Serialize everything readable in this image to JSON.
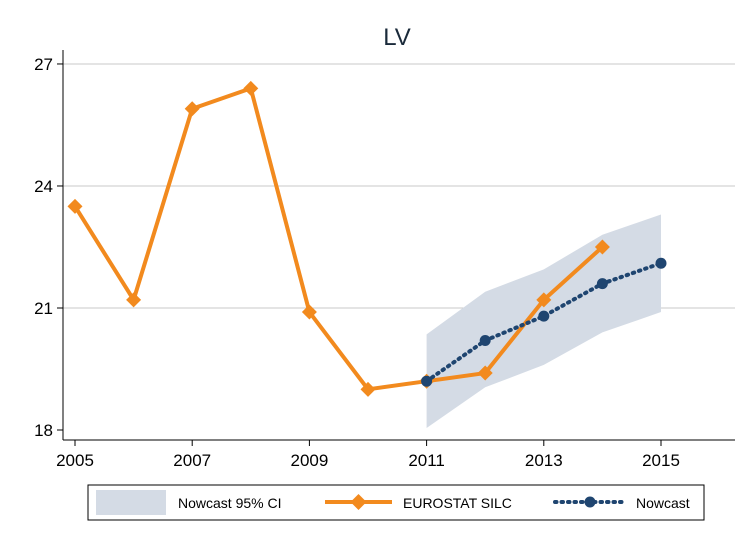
{
  "chart_data": {
    "type": "line",
    "title": "LV",
    "xlabel": "",
    "ylabel": "",
    "xlim": [
      2005,
      2016.2
    ],
    "ylim": [
      17.8,
      27.8
    ],
    "x_ticks": [
      2005,
      2007,
      2009,
      2011,
      2013,
      2015
    ],
    "y_ticks": [
      18,
      21,
      24,
      27
    ],
    "grid": true,
    "legend_position": "bottom",
    "band": {
      "name": "Nowcast 95% CI",
      "color": "#d4dbe5",
      "x": [
        2011,
        2012,
        2013,
        2014,
        2015
      ],
      "lower": [
        18.05,
        19.05,
        19.6,
        20.4,
        20.9
      ],
      "upper": [
        20.35,
        21.4,
        21.95,
        22.8,
        23.3
      ]
    },
    "series": [
      {
        "name": "EUROSTAT SILC",
        "color": "#f28a1e",
        "style": "solid",
        "marker": "diamond",
        "x": [
          2005,
          2006,
          2007,
          2008,
          2009,
          2010,
          2011,
          2012,
          2013,
          2014
        ],
        "values": [
          23.5,
          21.2,
          25.9,
          26.4,
          20.9,
          19.0,
          19.2,
          19.4,
          21.2,
          22.5
        ]
      },
      {
        "name": "Nowcast",
        "color": "#1f4570",
        "style": "dotted",
        "marker": "circle",
        "x": [
          2011,
          2012,
          2013,
          2014,
          2015
        ],
        "values": [
          19.2,
          20.2,
          20.8,
          21.6,
          22.1
        ]
      }
    ]
  }
}
